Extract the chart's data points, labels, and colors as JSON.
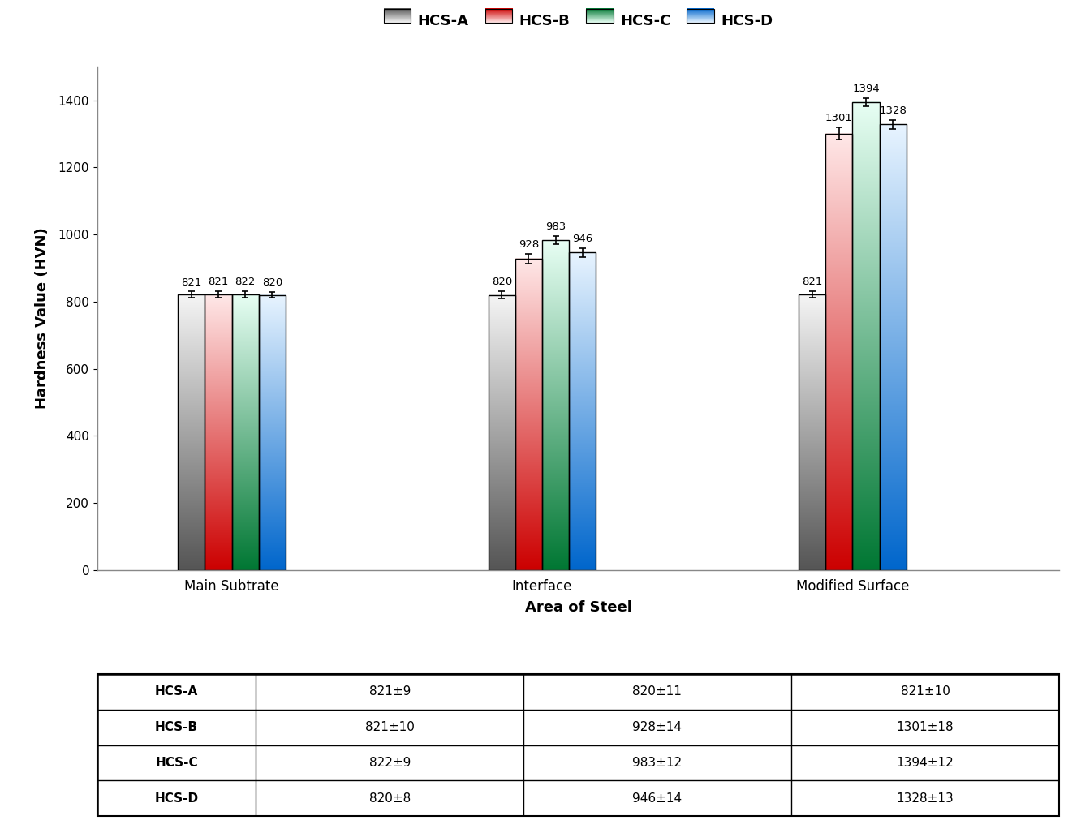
{
  "categories": [
    "Main Subtrate",
    "Interface",
    "Modified Surface"
  ],
  "series": [
    "HCS-A",
    "HCS-B",
    "HCS-C",
    "HCS-D"
  ],
  "values": [
    [
      821,
      821,
      822,
      820
    ],
    [
      820,
      928,
      983,
      946
    ],
    [
      821,
      1301,
      1394,
      1328
    ]
  ],
  "errors": [
    [
      9,
      10,
      9,
      8
    ],
    [
      11,
      14,
      12,
      14
    ],
    [
      10,
      18,
      12,
      13
    ]
  ],
  "bottom_colors": [
    "#555555",
    "#cc0000",
    "#007733",
    "#0066cc"
  ],
  "top_colors": [
    "#f5f5f5",
    "#ffe8e8",
    "#e8fff4",
    "#e8f4ff"
  ],
  "legend_mid_colors": [
    "#aaaaaa",
    "#ff5555",
    "#33bb77",
    "#4499ee"
  ],
  "ylabel": "Hardness Value (HVN)",
  "xlabel": "Area of Steel",
  "ylim": [
    0,
    1500
  ],
  "yticks": [
    0,
    200,
    400,
    600,
    800,
    1000,
    1200,
    1400
  ],
  "legend_labels": [
    "HCS-A",
    "HCS-B",
    "HCS-C",
    "HCS-D"
  ],
  "table_data": [
    [
      "HCS-A",
      "821±9",
      "820±11",
      "821±10"
    ],
    [
      "HCS-B",
      "821±10",
      "928±14",
      "1301±18"
    ],
    [
      "HCS-C",
      "822±9",
      "983±12",
      "1394±12"
    ],
    [
      "HCS-D",
      "820±8",
      "946±14",
      "1328±13"
    ]
  ],
  "bar_width": 0.13,
  "group_centers": [
    1.0,
    2.5,
    4.0
  ],
  "xlim": [
    0.35,
    5.0
  ],
  "fig_width": 13.32,
  "fig_height": 10.27,
  "dpi": 100
}
